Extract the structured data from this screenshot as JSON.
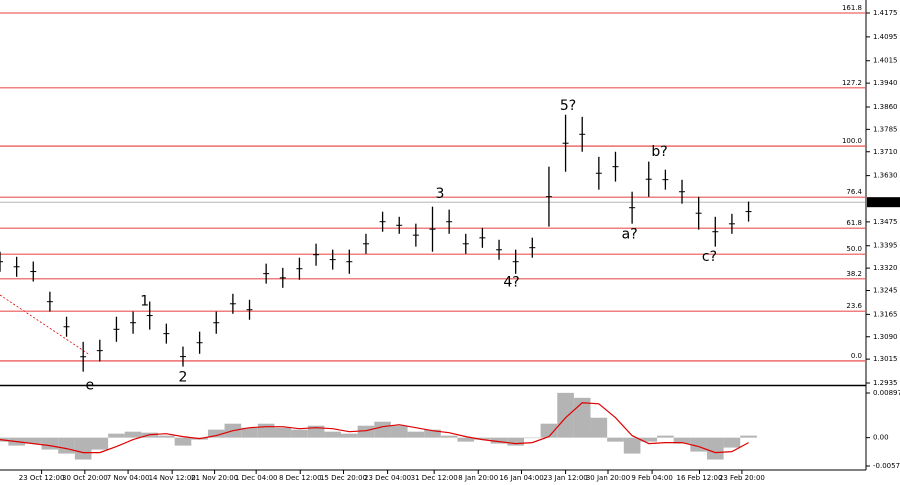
{
  "chart_data": [
    {
      "type": "hilo",
      "x": [
        0,
        2,
        4,
        6,
        8,
        10,
        12,
        14,
        16,
        18,
        20,
        22,
        24,
        26,
        28,
        30,
        32,
        34,
        36,
        38,
        40,
        42,
        44,
        46,
        48,
        50,
        52,
        54,
        56,
        58,
        60,
        62,
        64,
        66,
        68,
        70,
        72,
        74,
        76,
        78,
        80,
        82,
        84,
        86,
        88,
        90
      ],
      "high": [
        1.3375,
        1.3358,
        1.3342,
        1.3241,
        1.3157,
        1.3073,
        1.308,
        1.3157,
        1.3174,
        1.3208,
        1.3134,
        1.3057,
        1.3107,
        1.3174,
        1.3234,
        1.3214,
        1.3335,
        1.3321,
        1.3355,
        1.3402,
        1.3382,
        1.3382,
        1.3435,
        1.3509,
        1.3492,
        1.3469,
        1.3526,
        1.3516,
        1.3435,
        1.3455,
        1.3415,
        1.3382,
        1.3422,
        1.366,
        1.3834,
        1.3827,
        1.3693,
        1.371,
        1.3576,
        1.3677,
        1.365,
        1.3616,
        1.3559,
        1.3492,
        1.3502,
        1.3543
      ],
      "low": [
        1.3308,
        1.3291,
        1.3275,
        1.3174,
        1.309,
        1.2973,
        1.3007,
        1.3073,
        1.31,
        1.3114,
        1.3067,
        1.299,
        1.3033,
        1.31,
        1.3167,
        1.3147,
        1.3268,
        1.3254,
        1.3281,
        1.3328,
        1.3315,
        1.3301,
        1.3368,
        1.3442,
        1.3435,
        1.3392,
        1.3375,
        1.3435,
        1.3368,
        1.3388,
        1.3348,
        1.3301,
        1.3355,
        1.3459,
        1.3643,
        1.371,
        1.3583,
        1.361,
        1.3469,
        1.3559,
        1.3583,
        1.3536,
        1.3449,
        1.3392,
        1.3435,
        1.3476
      ],
      "color": "#000000",
      "xlim": [
        0,
        104
      ],
      "ylim": [
        1.2935,
        1.4175
      ],
      "yticks": [
        1.4175,
        1.4095,
        1.4015,
        {
          "value": 1.394,
          "label": "1.3940"
        },
        {
          "value": 1.386,
          "label": "1.3860"
        },
        1.3785,
        {
          "value": 1.371,
          "label": "1.3710"
        },
        {
          "value": 1.363,
          "label": "1.3630"
        },
        1.3475,
        1.3395,
        {
          "value": 1.332,
          "label": "1.3320"
        },
        1.3245,
        1.3165,
        {
          "value": 1.309,
          "label": "1.3090"
        },
        1.3015,
        1.2935
      ],
      "current_price": 1.3541,
      "levels": [
        {
          "label": "161.8",
          "value": 1.4175
        },
        {
          "label": "127.2",
          "value": 1.3924
        },
        {
          "label": "100.0",
          "value": 1.3729
        },
        {
          "label": "76.4",
          "value": 1.3558
        },
        {
          "label": "61.8",
          "value": 1.3454
        },
        {
          "label": "50.0",
          "value": 1.3367
        },
        {
          "label": "38.2",
          "value": 1.3284
        },
        {
          "label": "23.6",
          "value": 1.3176
        },
        {
          "label": "0.0",
          "value": 1.3009
        }
      ],
      "level_color": "#e00000",
      "annotations": [
        {
          "text": "e",
          "x": 10.8,
          "y": 1.2926
        },
        {
          "text": "1",
          "x": 17.4,
          "y": 1.3208
        },
        {
          "text": "2",
          "x": 22,
          "y": 1.2953
        },
        {
          "text": "3",
          "x": 52.9,
          "y": 1.3569
        },
        {
          "text": "4?",
          "x": 61.5,
          "y": 1.3271
        },
        {
          "text": "5?",
          "x": 68.3,
          "y": 1.3864
        },
        {
          "text": "a?",
          "x": 75.7,
          "y": 1.3432
        },
        {
          "text": "b?",
          "x": 79.3,
          "y": 1.371
        },
        {
          "text": "c?",
          "x": 85.3,
          "y": 1.3358
        }
      ],
      "annotation_color": "#e00000"
    },
    {
      "type": "oscillator",
      "x": [
        0,
        2,
        4,
        6,
        8,
        10,
        12,
        14,
        16,
        18,
        20,
        22,
        24,
        26,
        28,
        30,
        32,
        34,
        36,
        38,
        40,
        42,
        44,
        46,
        48,
        50,
        52,
        54,
        56,
        58,
        60,
        62,
        64,
        66,
        68,
        70,
        72,
        74,
        76,
        78,
        80,
        82,
        84,
        86,
        88,
        90
      ],
      "values": [
        -0.0008,
        -0.0016,
        -0.0012,
        -0.0024,
        -0.0032,
        -0.0044,
        -0.0024,
        0.0008,
        0.0012,
        0.001,
        0.0004,
        -0.0016,
        -0.0004,
        0.0016,
        0.0028,
        0.002,
        0.0028,
        0.002,
        0.0016,
        0.0024,
        0.0012,
        0.0008,
        0.0024,
        0.0032,
        0.0024,
        0.0012,
        0.0016,
        0.0004,
        -0.0008,
        -0.0004,
        -0.0012,
        -0.0016,
        0,
        0.0028,
        0.009,
        0.008,
        0.004,
        -0.0008,
        -0.0032,
        -0.0008,
        0.0004,
        -0.0012,
        -0.0028,
        -0.0044,
        -0.002,
        0.0004
      ],
      "color": "#b4b4b4",
      "signal": [
        -0.0004,
        -0.0008,
        -0.0012,
        -0.0016,
        -0.0022,
        -0.003,
        -0.003,
        -0.0018,
        -0.0004,
        0.0006,
        0.0008,
        0.0002,
        -0.0002,
        0.0004,
        0.0014,
        0.002,
        0.0022,
        0.0022,
        0.0018,
        0.002,
        0.0018,
        0.0012,
        0.0014,
        0.0022,
        0.0026,
        0.002,
        0.0014,
        0.001,
        0.0002,
        -0.0004,
        -0.0008,
        -0.0012,
        -0.001,
        0.0002,
        0.004,
        0.007,
        0.0068,
        0.004,
        0.0004,
        -0.0012,
        -0.001,
        -0.001,
        -0.0018,
        -0.003,
        -0.0028,
        -0.001
      ],
      "signal_color": "#e00000",
      "xlim": [
        0,
        104
      ],
      "ylim": [
        -0.0057,
        0.00897
      ],
      "yticks": [
        0.00897,
        {
          "value": 0,
          "label": "0.00"
        },
        -0.0057
      ],
      "xticks": [
        {
          "value": 5,
          "label": "23 Oct 12:00"
        },
        {
          "value": 10.2,
          "label": "30 Oct 20:00"
        },
        {
          "value": 15.4,
          "label": "7 Nov 04:00"
        },
        {
          "value": 20.7,
          "label": "14 Nov 12:00"
        },
        {
          "value": 25.8,
          "label": "21 Nov 20:00"
        },
        {
          "value": 30.8,
          "label": "1 Dec 04:00"
        },
        {
          "value": 36.1,
          "label": "8 Dec 12:00"
        },
        {
          "value": 41.3,
          "label": "15 Dec 20:00"
        },
        {
          "value": 46.6,
          "label": "23 Dec 04:00"
        },
        {
          "value": 52.2,
          "label": "31 Dec 12:00"
        },
        {
          "value": 57.5,
          "label": "8 Jan 20:00"
        },
        {
          "value": 62.7,
          "label": "16 Jan 04:00"
        },
        {
          "value": 68,
          "label": "23 Jan 12:00"
        },
        {
          "value": 73.1,
          "label": "30 Jan 20:00"
        },
        {
          "value": 78.4,
          "label": "9 Feb 04:00"
        },
        {
          "value": 84.1,
          "label": "16 Feb 12:00"
        },
        {
          "value": 89.2,
          "label": "23 Feb 20:00"
        }
      ]
    }
  ]
}
